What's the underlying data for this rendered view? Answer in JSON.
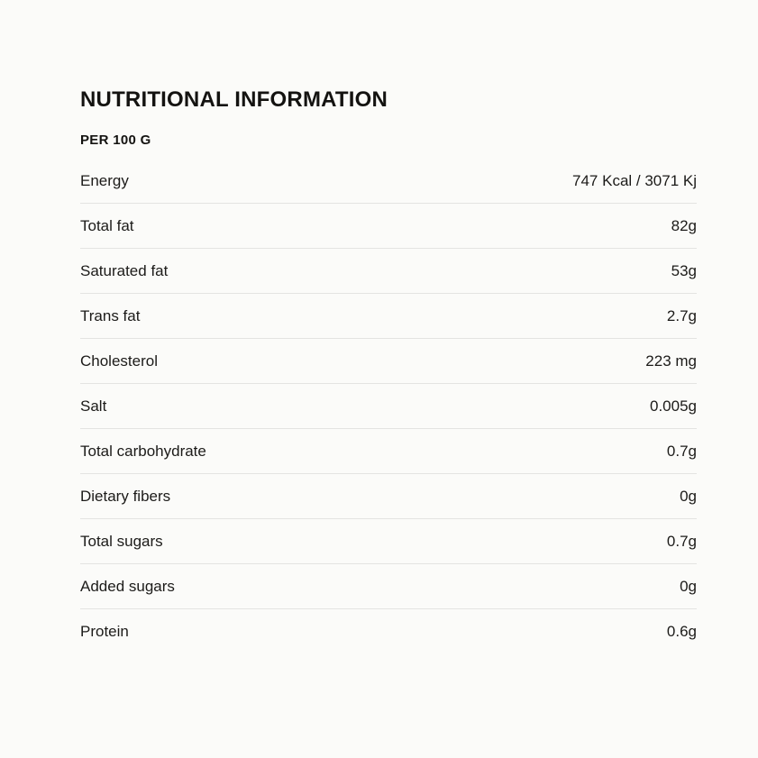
{
  "page": {
    "title": "NUTRITIONAL INFORMATION",
    "subtitle": "PER 100 G"
  },
  "table": {
    "rows": [
      {
        "label": "Energy",
        "value": "747 Kcal / 3071 Kj"
      },
      {
        "label": "Total fat",
        "value": "82g"
      },
      {
        "label": "Saturated fat",
        "value": "53g"
      },
      {
        "label": "Trans fat",
        "value": "2.7g"
      },
      {
        "label": "Cholesterol",
        "value": "223 mg"
      },
      {
        "label": "Salt",
        "value": "0.005g"
      },
      {
        "label": "Total carbohydrate",
        "value": "0.7g"
      },
      {
        "label": "Dietary fibers",
        "value": "0g"
      },
      {
        "label": "Total sugars",
        "value": "0.7g"
      },
      {
        "label": "Added sugars",
        "value": "0g"
      },
      {
        "label": "Protein",
        "value": "0.6g"
      }
    ]
  },
  "colors": {
    "background": "#fbfbf9",
    "text": "#1c1b19",
    "divider": "#e4e4e2"
  }
}
